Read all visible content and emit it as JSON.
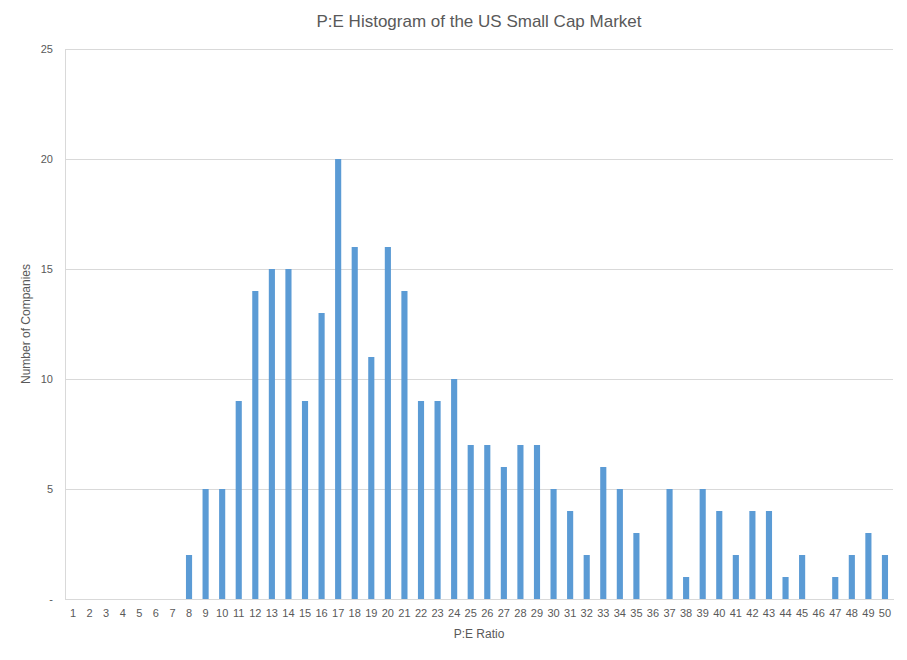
{
  "chart_data": {
    "type": "bar",
    "title": "P:E Histogram of the US Small Cap Market",
    "x_label": "P:E Ratio",
    "y_label": "Number of Companies",
    "categories": [
      "1",
      "2",
      "3",
      "4",
      "5",
      "6",
      "7",
      "8",
      "9",
      "10",
      "11",
      "12",
      "13",
      "14",
      "15",
      "16",
      "17",
      "18",
      "19",
      "20",
      "21",
      "22",
      "23",
      "24",
      "25",
      "26",
      "27",
      "28",
      "29",
      "30",
      "31",
      "32",
      "33",
      "34",
      "35",
      "36",
      "37",
      "38",
      "39",
      "40",
      "41",
      "42",
      "43",
      "44",
      "45",
      "46",
      "47",
      "48",
      "49",
      "50"
    ],
    "values": [
      0,
      0,
      0,
      0,
      0,
      0,
      0,
      2,
      5,
      5,
      9,
      14,
      15,
      15,
      9,
      13,
      20,
      16,
      11,
      16,
      14,
      9,
      9,
      10,
      7,
      7,
      6,
      7,
      7,
      5,
      4,
      2,
      6,
      5,
      3,
      0,
      5,
      1,
      5,
      4,
      2,
      4,
      4,
      1,
      2,
      0,
      1,
      2,
      3,
      2
    ],
    "color": "#5b9bd5",
    "ylim": [
      0,
      25
    ],
    "yticks": [
      {
        "value": 0,
        "label": "-"
      },
      5,
      10,
      15,
      20,
      25
    ],
    "grid": true
  }
}
